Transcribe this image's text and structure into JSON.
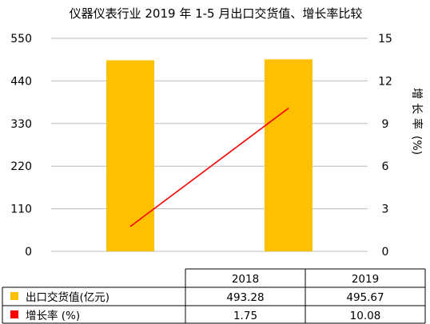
{
  "chart_data": {
    "type": "bar",
    "title": "仪器仪表行业 2019 年 1-5 月出口交货值、增长率比较",
    "categories": [
      "2018",
      "2019"
    ],
    "series": [
      {
        "name": "出口交货值(亿元)",
        "type": "bar",
        "axis": "left",
        "values": [
          493.28,
          495.67
        ],
        "color": "#FFC000"
      },
      {
        "name": "增长率 (%)",
        "type": "line",
        "axis": "right",
        "values": [
          1.75,
          10.08
        ],
        "color": "#FF0000"
      }
    ],
    "y_left": {
      "ylim": [
        0,
        550
      ],
      "ticks": [
        "0",
        "110",
        "220",
        "330",
        "440",
        "550"
      ]
    },
    "y_right": {
      "label_chars": [
        "增",
        "长",
        "率",
        "(%)"
      ],
      "ylim": [
        0,
        15
      ],
      "ticks": [
        "0",
        "3",
        "6",
        "9",
        "12",
        "15"
      ]
    },
    "grid": true,
    "legend": "bottom-table",
    "table": {
      "rows": [
        {
          "label": "出口交货值(亿元)",
          "values": [
            "493.28",
            "495.67"
          ]
        },
        {
          "label": "增长率 (%)",
          "values": [
            "1.75",
            "10.08"
          ]
        }
      ]
    }
  }
}
